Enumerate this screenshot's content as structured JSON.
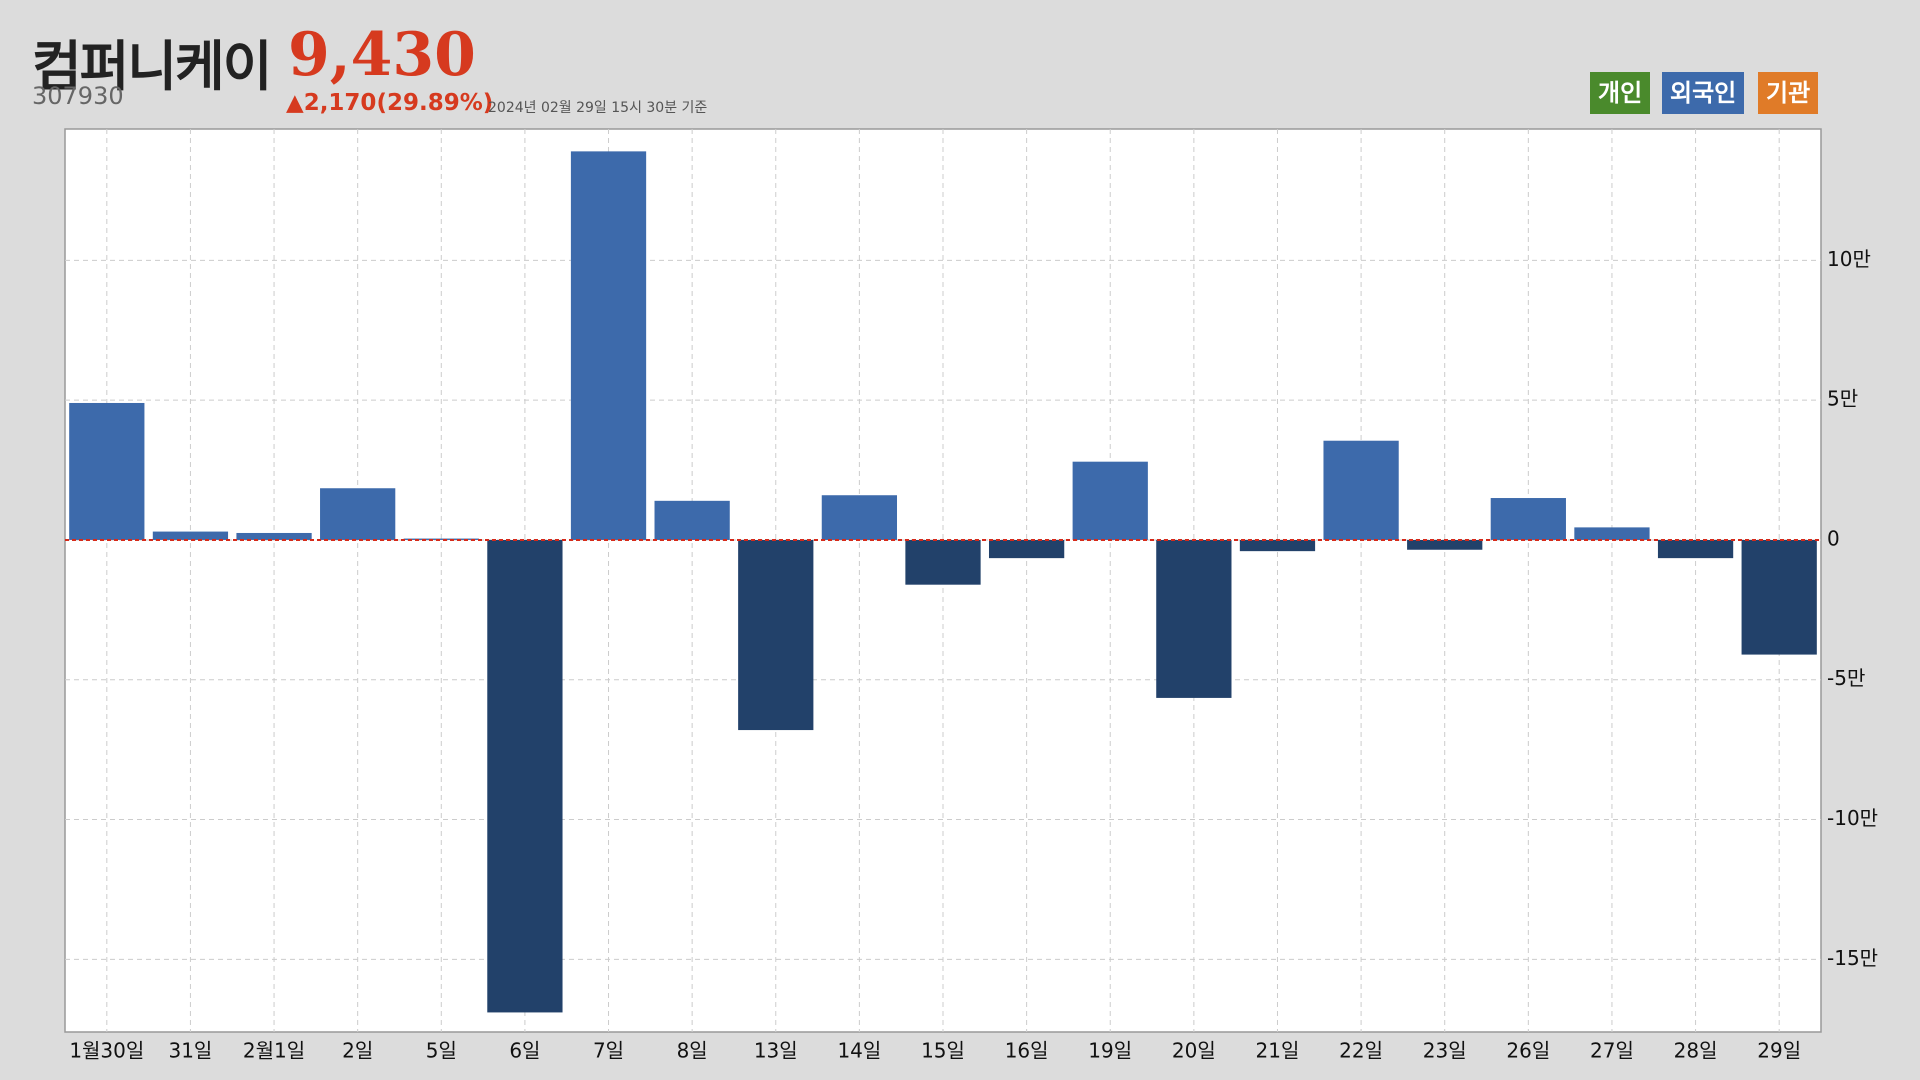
{
  "header": {
    "title": "컴퍼니케이",
    "price": "9,430",
    "code": "307930",
    "change": "▲2,170",
    "change_pct": "(29.89%)",
    "as_of": "2024년 02월 29일 15시 30분 기준"
  },
  "buttons": [
    {
      "label": "개인",
      "color": "#4a8a2c"
    },
    {
      "label": "외국인",
      "color": "#3d6aab"
    },
    {
      "label": "기관",
      "color": "#e07b28"
    }
  ],
  "chart_data": {
    "type": "bar",
    "categories": [
      "1월30일",
      "31일",
      "2월1일",
      "2일",
      "5일",
      "6일",
      "7일",
      "8일",
      "13일",
      "14일",
      "15일",
      "16일",
      "19일",
      "20일",
      "21일",
      "22일",
      "23일",
      "26일",
      "27일",
      "28일",
      "29일"
    ],
    "values": [
      49000,
      3000,
      2500,
      18500,
      500,
      -169000,
      139000,
      14000,
      -68000,
      16000,
      -16000,
      -6500,
      28000,
      -56500,
      -4000,
      35500,
      -3500,
      15000,
      4500,
      -6500,
      -41000
    ],
    "color_positive": "#3d6aab",
    "color_negative": "#22416a",
    "zero_line_color": "#d62a1a",
    "ylim": [
      -176000,
      147000
    ],
    "yticks": [
      {
        "value": 100000,
        "label": "10만"
      },
      {
        "value": 50000,
        "label": "5만"
      },
      0,
      {
        "value": -50000,
        "label": "-5만"
      },
      {
        "value": -100000,
        "label": "-10만"
      },
      {
        "value": -150000,
        "label": "-15만"
      }
    ],
    "grid": true,
    "y_axis_side": "right"
  }
}
